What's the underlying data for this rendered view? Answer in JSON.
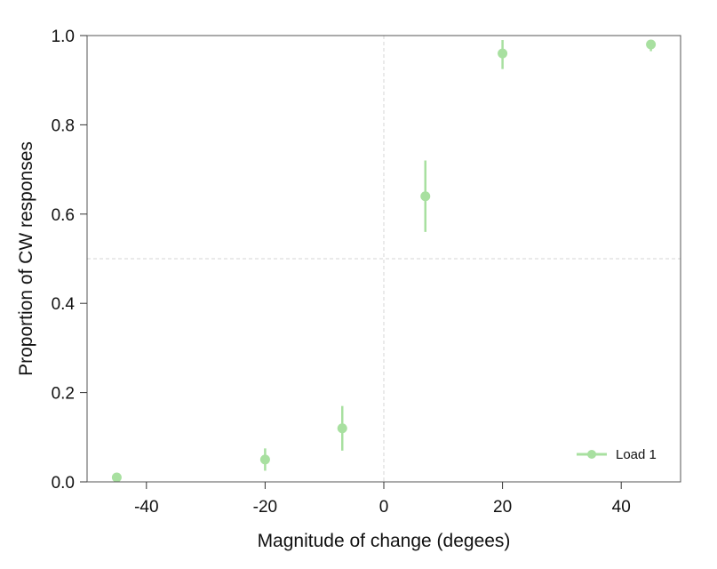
{
  "chart_data": {
    "type": "scatter",
    "title": "",
    "xlabel": "Magnitude of change (degees)",
    "ylabel": "Proportion of CW responses",
    "xlim": [
      -50,
      50
    ],
    "ylim": [
      0,
      1
    ],
    "xticks": [
      -40,
      -20,
      0,
      20,
      40
    ],
    "xtick_labels": [
      "-40",
      "-20",
      "0",
      "20",
      "40"
    ],
    "yticks": [
      0,
      0.2,
      0.4,
      0.6,
      0.8,
      1
    ],
    "ytick_labels": [
      "0.0",
      "0.2",
      "0.4",
      "0.6",
      "0.8",
      "1.0"
    ],
    "reference_lines": {
      "x": 0,
      "y": 0.5
    },
    "grid": false,
    "legend_position": "bottom-right",
    "series": [
      {
        "name": "Load 1",
        "color": "#a8e0a0",
        "points": [
          {
            "x": -45,
            "y": 0.01,
            "err_low": 0.005,
            "err_high": 0.015
          },
          {
            "x": -20,
            "y": 0.05,
            "err_low": 0.025,
            "err_high": 0.075
          },
          {
            "x": -7,
            "y": 0.12,
            "err_low": 0.07,
            "err_high": 0.17
          },
          {
            "x": 7,
            "y": 0.64,
            "err_low": 0.56,
            "err_high": 0.72
          },
          {
            "x": 20,
            "y": 0.96,
            "err_low": 0.925,
            "err_high": 0.99
          },
          {
            "x": 45,
            "y": 0.98,
            "err_low": 0.965,
            "err_high": 0.99
          }
        ]
      }
    ]
  }
}
